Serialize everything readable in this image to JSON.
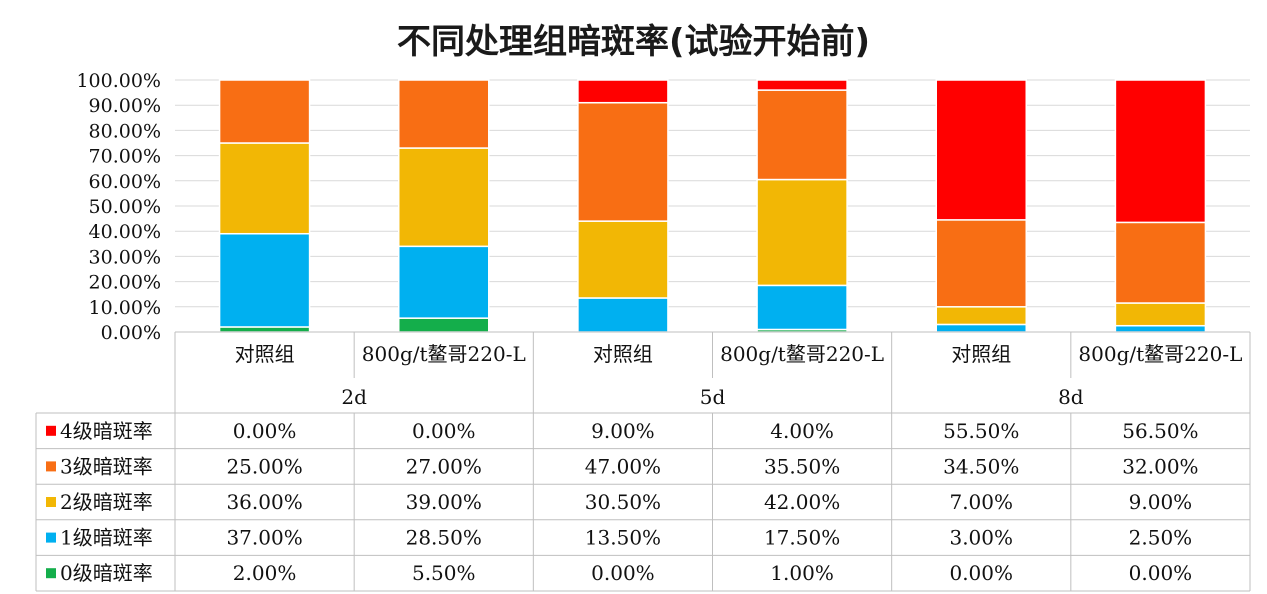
{
  "chart_data": {
    "type": "bar",
    "stacked": true,
    "title": "不同处理组暗斑率(试验开始前)",
    "groups": [
      {
        "label": "2d",
        "categories": [
          "对照组",
          "800g/t鳌哥220-L"
        ]
      },
      {
        "label": "5d",
        "categories": [
          "对照组",
          "800g/t鳌哥220-L"
        ]
      },
      {
        "label": "8d",
        "categories": [
          "对照组",
          "800g/t鳌哥220-L"
        ]
      }
    ],
    "y_ticks": [
      "0.00%",
      "10.00%",
      "20.00%",
      "30.00%",
      "40.00%",
      "50.00%",
      "60.00%",
      "70.00%",
      "80.00%",
      "90.00%",
      "100.00%"
    ],
    "ylim": [
      0,
      100
    ],
    "grid": true,
    "legend": "data-table",
    "series": [
      {
        "name": "4级暗斑率",
        "color": "#ff0000",
        "values": [
          0.0,
          0.0,
          9.0,
          4.0,
          55.5,
          56.5
        ],
        "labels": [
          "0.00%",
          "0.00%",
          "9.00%",
          "4.00%",
          "55.50%",
          "56.50%"
        ]
      },
      {
        "name": "3级暗斑率",
        "color": "#f86e14",
        "values": [
          25.0,
          27.0,
          47.0,
          35.5,
          34.5,
          32.0
        ],
        "labels": [
          "25.00%",
          "27.00%",
          "47.00%",
          "35.50%",
          "34.50%",
          "32.00%"
        ]
      },
      {
        "name": "2级暗斑率",
        "color": "#f2b705",
        "values": [
          36.0,
          39.0,
          30.5,
          42.0,
          7.0,
          9.0
        ],
        "labels": [
          "36.00%",
          "39.00%",
          "30.50%",
          "42.00%",
          "7.00%",
          "9.00%"
        ]
      },
      {
        "name": "1级暗斑率",
        "color": "#00b0f0",
        "values": [
          37.0,
          28.5,
          13.5,
          17.5,
          3.0,
          2.5
        ],
        "labels": [
          "37.00%",
          "28.50%",
          "13.50%",
          "17.50%",
          "3.00%",
          "2.50%"
        ]
      },
      {
        "name": "0级暗斑率",
        "color": "#14ae4b",
        "values": [
          2.0,
          5.5,
          0.0,
          1.0,
          0.0,
          0.0
        ],
        "labels": [
          "2.00%",
          "5.50%",
          "0.00%",
          "1.00%",
          "0.00%",
          "0.00%"
        ]
      }
    ]
  }
}
